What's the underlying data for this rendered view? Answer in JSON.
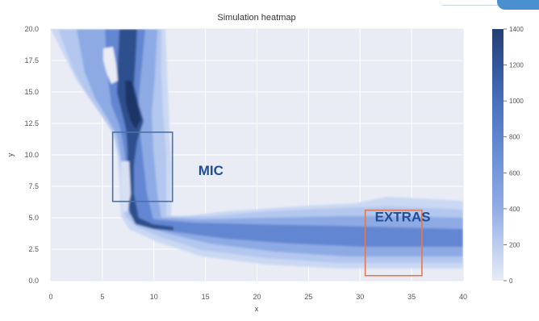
{
  "chart_data": {
    "type": "heatmap",
    "title": "Simulation heatmap",
    "xlabel": "x",
    "ylabel": "y",
    "xlim": [
      0,
      40
    ],
    "ylim": [
      0,
      20
    ],
    "x_ticks": [
      "0",
      "5",
      "10",
      "15",
      "20",
      "25",
      "30",
      "35",
      "40"
    ],
    "y_ticks": [
      "0.0",
      "2.5",
      "5.0",
      "7.5",
      "10.0",
      "12.5",
      "15.0",
      "17.5",
      "20.0"
    ],
    "grid": true,
    "colorbar": {
      "min": 0,
      "max": 1400,
      "ticks": [
        "0",
        "200",
        "400",
        "600",
        "800",
        "1000",
        "1200",
        "1400"
      ],
      "colors": [
        "#e8ecf6",
        "#b9cbee",
        "#8eaae4",
        "#6a8fd6",
        "#4a72be",
        "#33579c",
        "#243f74"
      ]
    },
    "regions": [
      {
        "label": "MIC",
        "x_range": [
          6,
          11.8
        ],
        "y_range": [
          6.3,
          11.8
        ],
        "color": "#4a70aa"
      },
      {
        "label": "EXTRAS",
        "x_range": [
          30.5,
          36
        ],
        "y_range": [
          0.4,
          5.6
        ],
        "color": "#e07a52"
      }
    ],
    "background_color": "#e9ecf5"
  }
}
